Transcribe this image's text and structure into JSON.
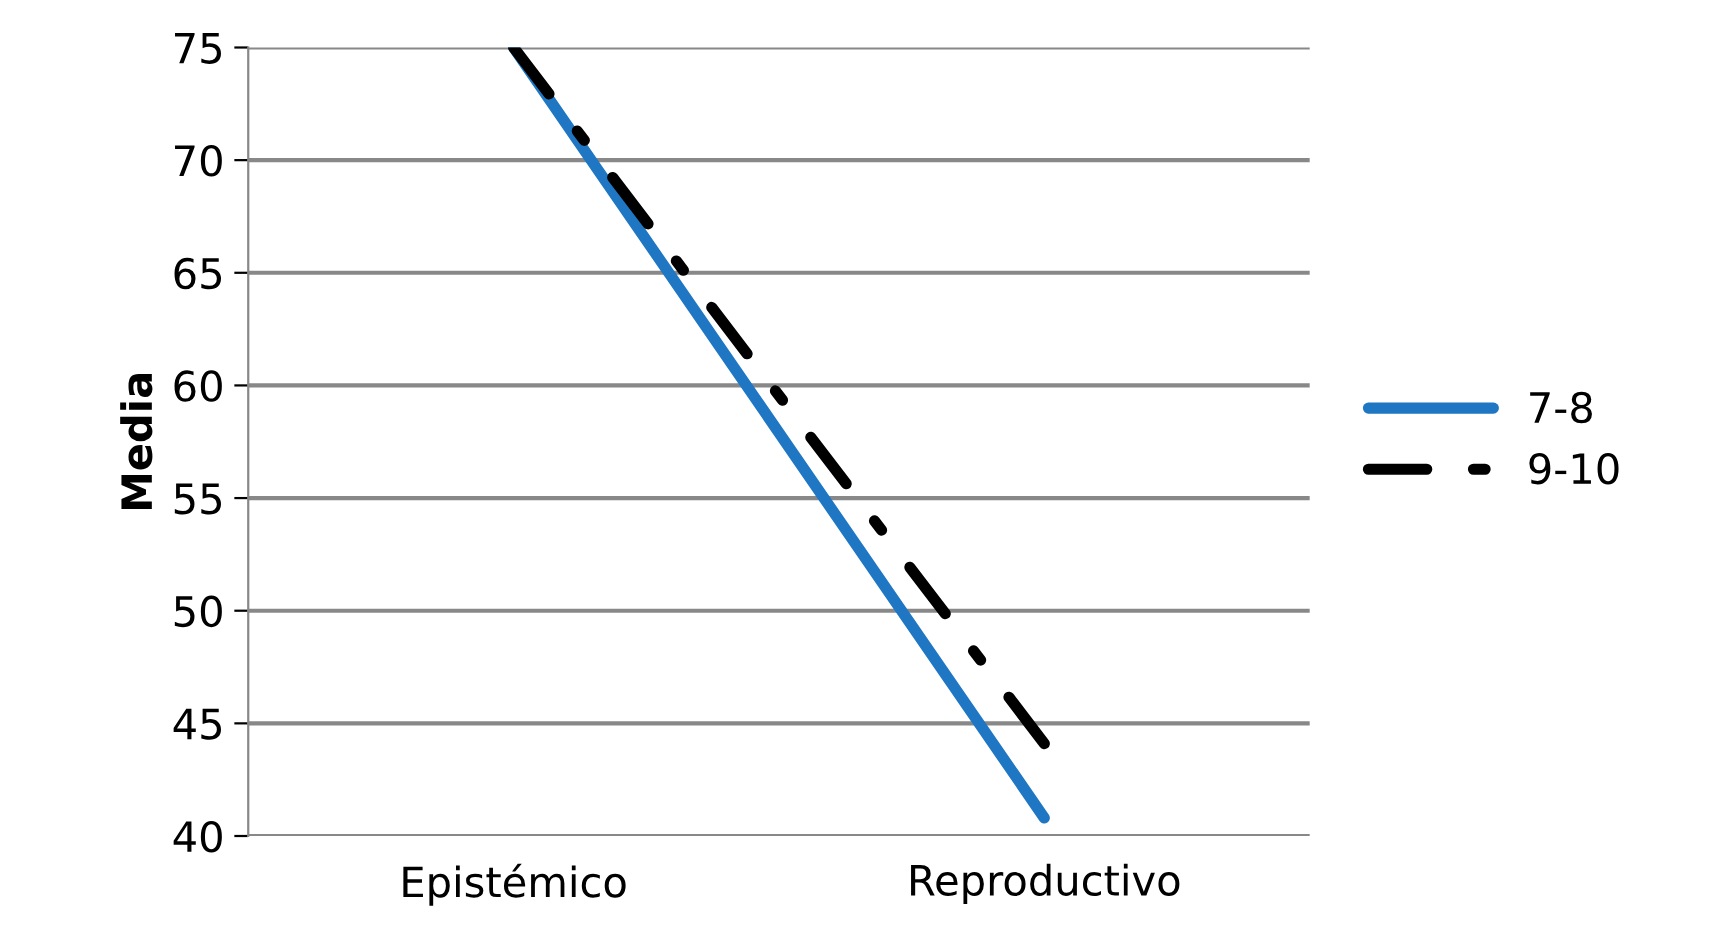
{
  "chart_data": {
    "type": "line",
    "ylabel": "Media",
    "categories": [
      "Epistémico",
      "Reproductivo"
    ],
    "series": [
      {
        "name": "7-8",
        "color": "#1f77c4",
        "values": [
          75,
          40.8
        ],
        "line_style": "solid"
      },
      {
        "name": "9-10",
        "color": "#000000",
        "values": [
          75,
          44.1
        ],
        "line_style": "dashdot"
      }
    ],
    "ylim": [
      40,
      75
    ],
    "yticks": [
      40,
      45,
      50,
      55,
      60,
      65,
      70,
      75
    ],
    "grid": "y",
    "legend": "right",
    "marker": "none"
  }
}
